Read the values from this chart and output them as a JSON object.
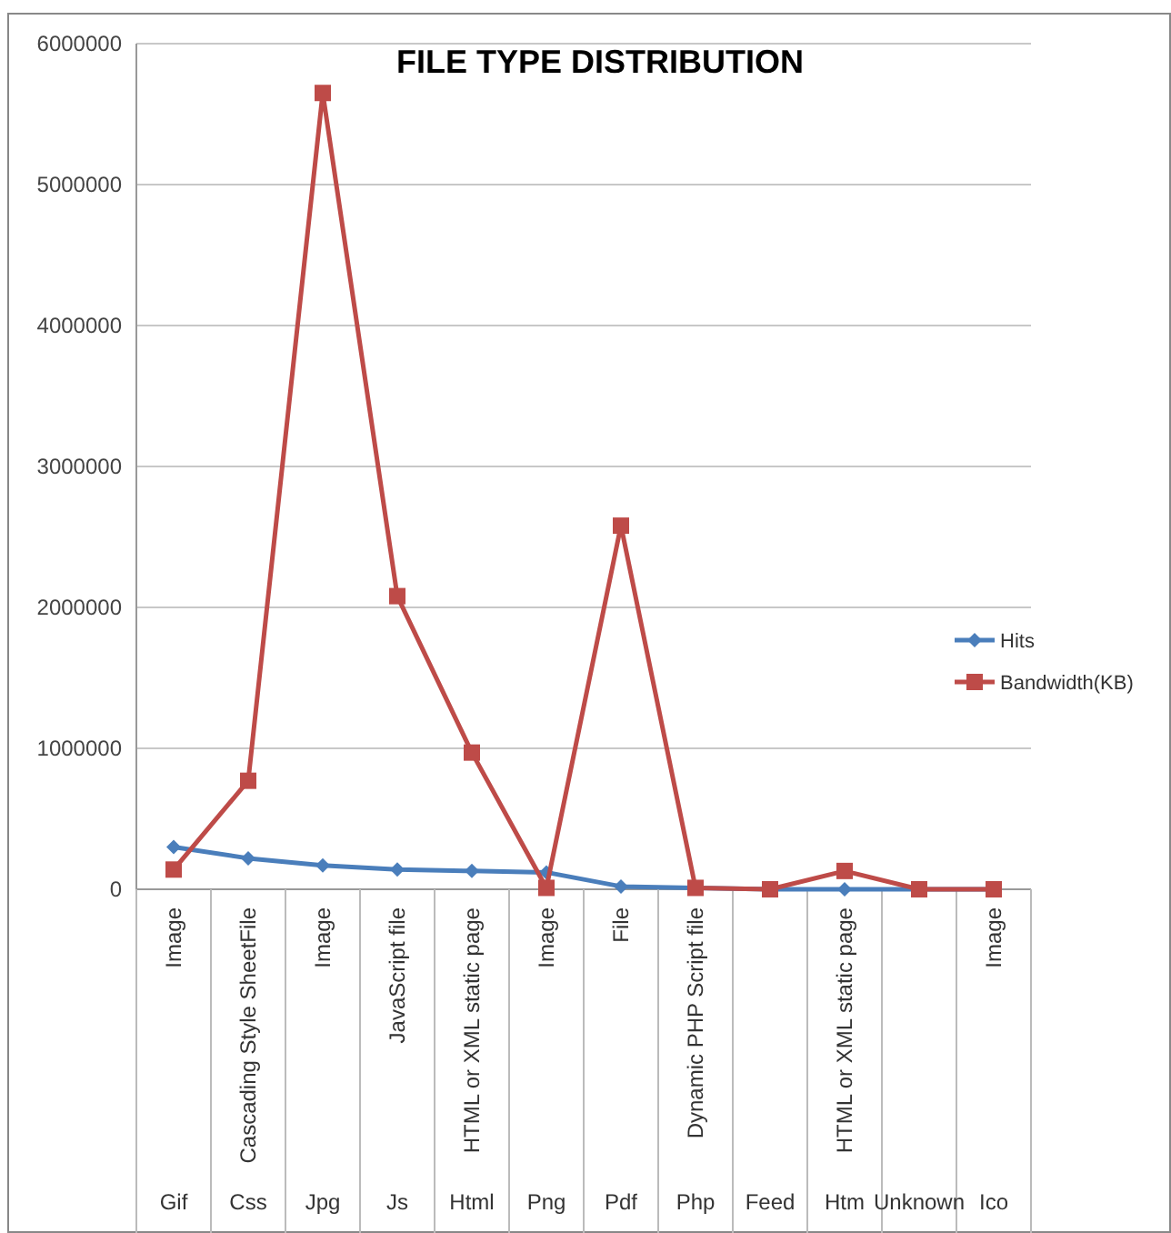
{
  "chart_data": {
    "type": "line",
    "title": "FILE TYPE DISTRIBUTION",
    "categories": [
      "Image",
      "Cascading Style SheetFile",
      "Image",
      "JavaScript file",
      "HTML or XML static page",
      "Image",
      "File",
      "Dynamic PHP Script file",
      null,
      "HTML or XML static page",
      null,
      "Image"
    ],
    "series": [
      {
        "name": "Hits",
        "color": "#4a7ebb",
        "marker": "diamond",
        "values": [
          300000,
          220000,
          170000,
          140000,
          130000,
          120000,
          20000,
          10000,
          0,
          0,
          0,
          0
        ]
      },
      {
        "name": "Bandwidth(KB)",
        "color": "#be4b48",
        "marker": "square",
        "values": [
          140000,
          770000,
          5650000,
          2080000,
          970000,
          10000,
          2580000,
          10000,
          0,
          130000,
          0,
          0
        ]
      }
    ],
    "annotations": [
      "Gif",
      "Css",
      "Jpg",
      "Js",
      "Html",
      "Png",
      "Pdf",
      "Php",
      "Feed",
      "Htm",
      "Unknown",
      "Ico"
    ],
    "ylim": [
      0,
      6000000
    ],
    "yticks": [
      0,
      1000000,
      2000000,
      3000000,
      4000000,
      5000000,
      6000000
    ],
    "grid": "y",
    "legend": "right"
  }
}
